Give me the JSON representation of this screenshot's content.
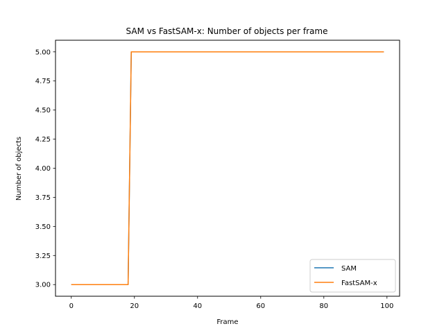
{
  "chart_data": {
    "type": "line",
    "title": "SAM vs FastSAM-x: Number of objects per frame",
    "xlabel": "Frame",
    "ylabel": "Number of objects",
    "xlim": [
      -5,
      104
    ],
    "ylim": [
      2.9,
      5.1
    ],
    "x_ticks": [
      0,
      20,
      40,
      60,
      80,
      100
    ],
    "y_ticks": [
      3.0,
      3.25,
      3.5,
      3.75,
      4.0,
      4.25,
      4.5,
      4.75,
      5.0
    ],
    "grid": false,
    "legend_position": "lower right",
    "series": [
      {
        "name": "SAM",
        "color": "#1f77b4",
        "points": [
          [
            0,
            3
          ],
          [
            18,
            3
          ],
          [
            19,
            5
          ],
          [
            99,
            5
          ]
        ]
      },
      {
        "name": "FastSAM-x",
        "color": "#ff7f0e",
        "points": [
          [
            0,
            3
          ],
          [
            18,
            3
          ],
          [
            19,
            5
          ],
          [
            99,
            5
          ]
        ]
      }
    ]
  }
}
